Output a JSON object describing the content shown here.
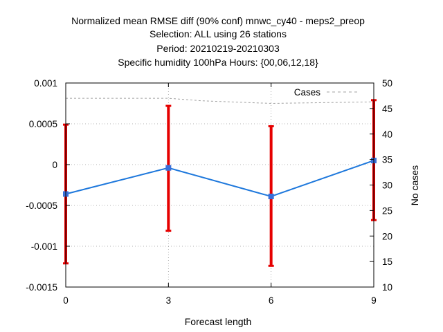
{
  "chart_data": {
    "type": "line",
    "title": [
      "Normalized mean RMSE diff (90% conf) mnwc_cy40 - meps2_preop",
      "Selection: ALL using    26 stations",
      "Period: 20210219-20210303",
      "Specific humidity 100hPa   Hours: {00,06,12,18}"
    ],
    "xlabel": "Forecast length",
    "ylabel": "",
    "y2label": "No cases",
    "x": [
      0,
      3,
      6,
      9
    ],
    "xlim": [
      0,
      9
    ],
    "ylim": [
      -0.0015,
      0.001
    ],
    "y2lim": [
      10,
      50
    ],
    "x_ticks": [
      "0",
      "3",
      "6",
      "9"
    ],
    "y_ticks": [
      {
        "value": 0.001,
        "label": "0.001"
      },
      {
        "value": 0.0005,
        "label": "0.0005"
      },
      {
        "value": 0,
        "label": "0"
      },
      {
        "value": -0.0005,
        "label": "-0.0005"
      },
      {
        "value": -0.001,
        "label": "-0.001"
      },
      {
        "value": -0.0015,
        "label": "-0.0015"
      }
    ],
    "y2_ticks": [
      {
        "value": 50,
        "label": "50"
      },
      {
        "value": 45,
        "label": "45"
      },
      {
        "value": 40,
        "label": "40"
      },
      {
        "value": 35,
        "label": "35"
      },
      {
        "value": 30,
        "label": "30"
      },
      {
        "value": 25,
        "label": "25"
      },
      {
        "value": 20,
        "label": "20"
      },
      {
        "value": 15,
        "label": "15"
      },
      {
        "value": 10,
        "label": "10"
      }
    ],
    "grid": true,
    "legend_position": "top-right",
    "series": [
      {
        "type": "line",
        "color": "#1e78dc",
        "axis": "left",
        "values": [
          -0.00036,
          -4e-05,
          -0.00039,
          5e-05
        ],
        "error_low": [
          -0.00121,
          -0.00081,
          -0.00124,
          -0.00068
        ],
        "error_high": [
          0.00049,
          0.00072,
          0.00047,
          0.00079
        ],
        "error_color": "#e60000"
      },
      {
        "name": "Cases",
        "type": "dashed-line",
        "color": "#a0a0a0",
        "axis": "right",
        "x": [
          0,
          3,
          4,
          6,
          9
        ],
        "values": [
          47,
          47,
          46.5,
          46,
          46.3
        ]
      }
    ]
  }
}
